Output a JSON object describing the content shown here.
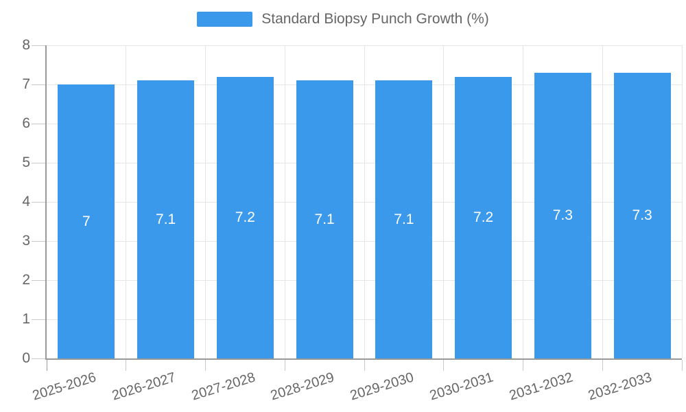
{
  "legend": {
    "label": "Standard Biopsy Punch Growth (%)"
  },
  "chart_data": {
    "type": "bar",
    "title": "Standard Biopsy Punch Growth (%)",
    "categories": [
      "2025-2026",
      "2026-2027",
      "2027-2028",
      "2028-2029",
      "2029-2030",
      "2030-2031",
      "2031-2032",
      "2032-2033"
    ],
    "values": [
      7,
      7.1,
      7.2,
      7.1,
      7.1,
      7.2,
      7.3,
      7.3
    ],
    "value_labels": [
      "7",
      "7.1",
      "7.2",
      "7.1",
      "7.1",
      "7.2",
      "7.3",
      "7.3"
    ],
    "xlabel": "",
    "ylabel": "",
    "ylim": [
      0,
      8
    ],
    "ytick_interval": 1,
    "yticks": [
      "0",
      "1",
      "2",
      "3",
      "4",
      "5",
      "6",
      "7",
      "8"
    ],
    "grid": true,
    "legend_position": "top-center",
    "x_label_rotation_deg": -17
  },
  "colors": {
    "bar": "#3b99ec",
    "grid": "#e6e6e6",
    "axis": "#999999",
    "tick_mark": "#c9c9c9",
    "text": "#666666",
    "value_label": "#ffffff",
    "background": "#ffffff"
  }
}
